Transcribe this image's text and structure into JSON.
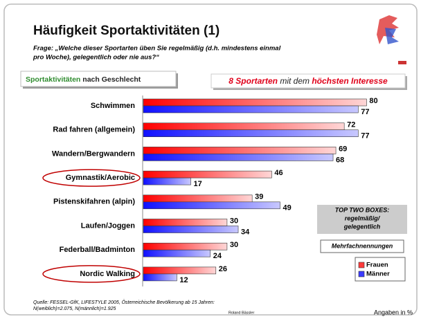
{
  "chart_data": {
    "type": "bar",
    "title": "Häufigkeit Sportaktivitäten (1)",
    "subtitle": [
      "Frage: „Welche dieser Sportarten üben Sie regelmäßig (d.h. mindestens einmal",
      "pro Woche), gelegentlich oder nie aus?“"
    ],
    "left_box": [
      {
        "text": "Sportaktivitäten",
        "color": "#2e8b2e"
      },
      {
        "text": " nach Geschlecht",
        "color": "#222222"
      }
    ],
    "right_box": [
      {
        "text": "8 Sportarten",
        "color": "#e0001a",
        "bold": true
      },
      {
        "text": " mit dem ",
        "color": "#222222",
        "bold": false
      },
      {
        "text": "höchsten Interesse",
        "color": "#e0001a",
        "bold": true
      }
    ],
    "categories": [
      "Schwimmen",
      "Rad fahren (allgemein)",
      "Wandern/Bergwandern",
      "Gymnastik/Aerobic",
      "Pistenskifahren (alpin)",
      "Laufen/Joggen",
      "Federball/Badminton",
      "Nordic Walking"
    ],
    "highlight": [
      3,
      7
    ],
    "series": [
      {
        "name": "Frauen",
        "color": "#ff3b3b",
        "values": [
          80,
          72,
          69,
          46,
          39,
          30,
          30,
          26
        ]
      },
      {
        "name": "Männer",
        "color": "#3b3bff",
        "values": [
          77,
          77,
          68,
          17,
          49,
          34,
          24,
          12
        ]
      }
    ],
    "note_box": [
      "TOP TWO BOXES:",
      "regelmäßig/",
      "gelegentlich"
    ],
    "multi_note": "Mehrfachnennungen",
    "source": [
      "Quelle: FESSEL-GfK, LIFESTYLE 2005, Österreichische Bevölkerung ab 15 Jahren:",
      "N(weiblich)=2.075, N(männlich)=1.925"
    ],
    "author": "Roland Bässler",
    "unit_note": "Angaben in %"
  }
}
